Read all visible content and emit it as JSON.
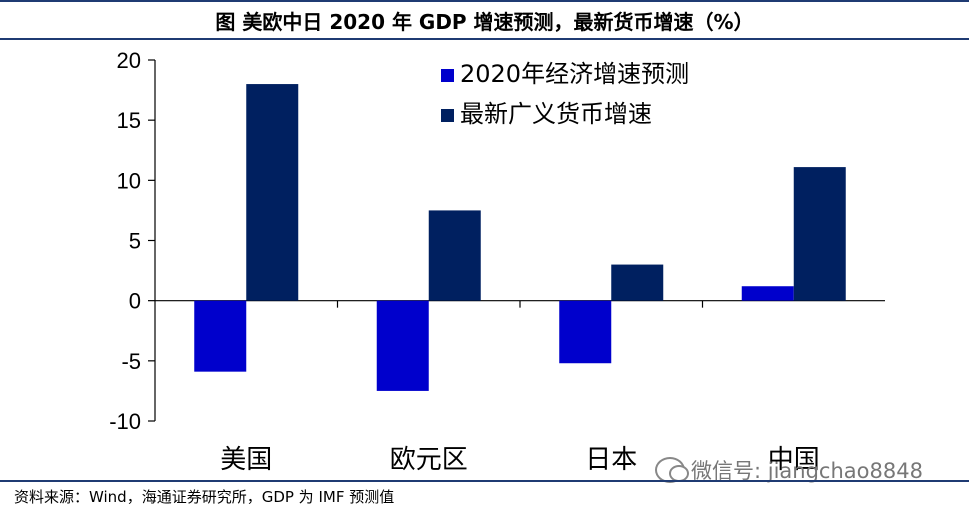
{
  "header": {
    "title": "图  美欧中日 2020 年 GDP 增速预测，最新货币增速（%）"
  },
  "footer": {
    "source": "资料来源：Wind，海通证券研究所，GDP 为 IMF 预测值"
  },
  "watermark": {
    "text": "微信号: jiangchao8848",
    "icon": "wechat-icon"
  },
  "chart_data": {
    "type": "bar",
    "categories": [
      "美国",
      "欧元区",
      "日本",
      "中国"
    ],
    "series": [
      {
        "name": "2020年经济增速预测",
        "values": [
          -5.9,
          -7.5,
          -5.2,
          1.2
        ],
        "color": "#0000cc"
      },
      {
        "name": "最新广义货币增速",
        "values": [
          18.0,
          7.5,
          3.0,
          11.1
        ],
        "color": "#002060"
      }
    ],
    "ylim": [
      -10,
      20
    ],
    "yticks": [
      -10,
      -5,
      0,
      5,
      10,
      15,
      20
    ],
    "legend": "top-right",
    "grid": false
  }
}
